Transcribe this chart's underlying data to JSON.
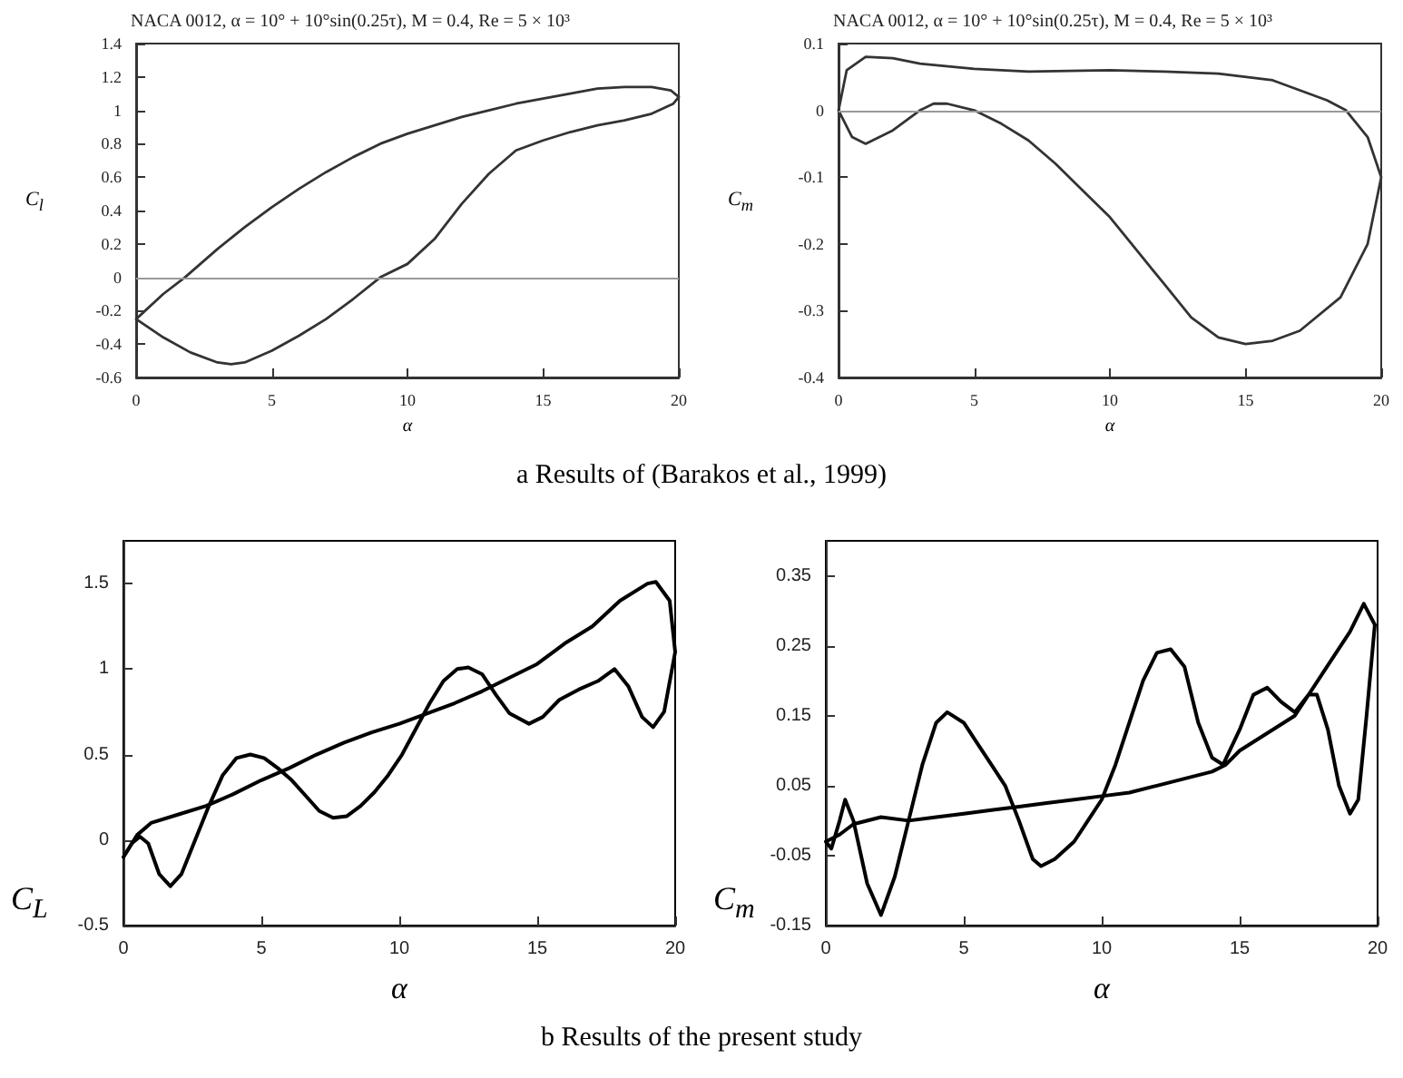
{
  "chart_data": [
    {
      "type": "line",
      "title": "NACA 0012, α = 10° + 10°sin(0.25τ), M = 0.4, Re = 5 × 10³",
      "xlabel": "α",
      "ylabel": "C$_{l}$",
      "xlim": [
        0,
        20
      ],
      "ylim": [
        -0.6,
        1.4
      ],
      "xticks": [
        0,
        5,
        10,
        15,
        20
      ],
      "yticks": [
        -0.6,
        -0.4,
        -0.2,
        0,
        0.2,
        0.4,
        0.6,
        0.8,
        1,
        1.2,
        1.4
      ],
      "grid": false,
      "marker": "none",
      "line_style": "solid",
      "annotations": [
        "a Results of (Barakos et al., 1999)"
      ],
      "ref_lines": [
        {
          "axis": "y",
          "value": 0,
          "color": "#999999"
        }
      ],
      "series": [
        {
          "color": "#333333",
          "x": [
            0,
            1,
            1.8,
            3,
            4,
            5,
            6,
            7,
            8,
            9,
            10,
            11,
            12,
            13,
            14,
            15,
            16,
            17,
            18,
            19,
            19.7,
            20,
            null,
            0,
            1,
            2,
            3,
            3.5,
            4,
            5,
            6,
            7,
            8,
            9,
            10,
            11,
            12,
            13,
            14,
            15,
            16,
            17,
            18,
            19,
            19.8,
            20
          ],
          "values": [
            -0.25,
            -0.1,
            0,
            0.17,
            0.3,
            0.42,
            0.53,
            0.63,
            0.72,
            0.8,
            0.86,
            0.91,
            0.96,
            1.0,
            1.04,
            1.07,
            1.1,
            1.13,
            1.14,
            1.14,
            1.12,
            1.08,
            null,
            -0.25,
            -0.36,
            -0.45,
            -0.51,
            -0.52,
            -0.51,
            -0.44,
            -0.35,
            -0.25,
            -0.13,
            0,
            0.08,
            0.23,
            0.44,
            0.62,
            0.76,
            0.82,
            0.87,
            0.91,
            0.94,
            0.98,
            1.04,
            1.08
          ]
        }
      ]
    },
    {
      "type": "line",
      "title": "NACA 0012, α = 10° + 10°sin(0.25τ), M = 0.4, Re = 5 × 10³",
      "xlabel": "α",
      "ylabel": "C$_{m}$",
      "xlim": [
        0,
        20
      ],
      "ylim": [
        -0.4,
        0.1
      ],
      "xticks": [
        0,
        5,
        10,
        15,
        20
      ],
      "yticks": [
        -0.4,
        -0.3,
        -0.2,
        -0.1,
        0,
        0.1
      ],
      "grid": false,
      "marker": "none",
      "line_style": "solid",
      "ref_lines": [
        {
          "axis": "y",
          "value": 0,
          "color": "#999999"
        }
      ],
      "series": [
        {
          "color": "#333333",
          "x": [
            0,
            0.3,
            1,
            2,
            3,
            5,
            7,
            10,
            12,
            14,
            16,
            17,
            18,
            18.7,
            19.5,
            20,
            null,
            0,
            0.5,
            1,
            2,
            3,
            3.5,
            4,
            5,
            6,
            7,
            8,
            9,
            10,
            11,
            12,
            13,
            14,
            15,
            16,
            17,
            18.5,
            19.5,
            20
          ],
          "values": [
            0,
            0.06,
            0.08,
            0.078,
            0.07,
            0.062,
            0.058,
            0.06,
            0.058,
            0.055,
            0.045,
            0.03,
            0.015,
            0,
            -0.04,
            -0.1,
            null,
            0,
            -0.04,
            -0.05,
            -0.03,
            0,
            0.01,
            0.01,
            0,
            -0.02,
            -0.045,
            -0.08,
            -0.12,
            -0.16,
            -0.21,
            -0.26,
            -0.31,
            -0.34,
            -0.35,
            -0.345,
            -0.33,
            -0.28,
            -0.2,
            -0.1
          ]
        }
      ]
    },
    {
      "type": "line",
      "xlabel": "α",
      "ylabel": "C$_{L}$",
      "xlim": [
        0,
        20
      ],
      "ylim": [
        -0.5,
        1.75
      ],
      "xticks": [
        0,
        5,
        10,
        15,
        20
      ],
      "yticks": [
        -0.5,
        0,
        0.5,
        1,
        1.5
      ],
      "grid": false,
      "marker": "none",
      "line_style": "solid",
      "annotations": [
        "b Results of the present study"
      ],
      "series": [
        {
          "color": "#000000",
          "x": [
            0,
            0.3,
            0.6,
            0.9,
            1.3,
            1.7,
            2.1,
            2.6,
            3.1,
            3.6,
            4.1,
            4.6,
            5.1,
            5.6,
            6.1,
            6.6,
            7.1,
            7.6,
            8.1,
            8.6,
            9.1,
            9.6,
            10.1,
            10.6,
            11.1,
            11.6,
            12.1,
            12.5,
            13,
            13.5,
            14,
            14.7,
            15.2,
            15.8,
            16.5,
            17.2,
            17.8,
            18.3,
            18.8,
            19.2,
            19.6,
            20,
            null,
            0,
            0.5,
            1,
            2,
            3,
            4,
            5,
            6,
            7,
            8,
            9,
            10,
            11,
            12,
            13,
            14,
            15,
            16,
            17,
            18,
            19,
            19.3,
            19.8,
            20
          ],
          "values": [
            -0.1,
            -0.02,
            0.02,
            -0.02,
            -0.2,
            -0.27,
            -0.2,
            0,
            0.2,
            0.38,
            0.48,
            0.5,
            0.48,
            0.42,
            0.35,
            0.26,
            0.17,
            0.13,
            0.14,
            0.2,
            0.28,
            0.38,
            0.5,
            0.65,
            0.8,
            0.93,
            1.0,
            1.01,
            0.97,
            0.85,
            0.74,
            0.68,
            0.72,
            0.82,
            0.88,
            0.93,
            1.0,
            0.9,
            0.72,
            0.66,
            0.75,
            1.1,
            null,
            -0.1,
            0.03,
            0.1,
            0.15,
            0.2,
            0.27,
            0.35,
            0.42,
            0.5,
            0.57,
            0.63,
            0.68,
            0.74,
            0.8,
            0.87,
            0.95,
            1.03,
            1.15,
            1.25,
            1.4,
            1.5,
            1.51,
            1.4,
            1.1
          ]
        }
      ]
    },
    {
      "type": "line",
      "xlabel": "α",
      "ylabel": "C$_{m}$",
      "xlim": [
        0,
        20
      ],
      "ylim": [
        -0.15,
        0.4
      ],
      "xticks": [
        0,
        5,
        10,
        15,
        20
      ],
      "yticks": [
        -0.15,
        -0.05,
        0.05,
        0.15,
        0.25,
        0.35
      ],
      "grid": false,
      "marker": "none",
      "line_style": "solid",
      "series": [
        {
          "color": "#000000",
          "x": [
            0,
            0.5,
            1,
            2,
            3,
            4,
            5,
            6,
            7,
            8,
            9,
            10,
            11,
            12,
            13,
            14,
            14.5,
            15,
            16,
            17,
            18,
            19,
            19.5,
            19.9,
            null,
            0,
            0.2,
            0.5,
            0.7,
            1,
            1.5,
            2,
            2.5,
            3,
            3.5,
            4,
            4.4,
            5,
            5.5,
            6,
            6.5,
            7,
            7.5,
            7.8,
            8.3,
            9,
            9.5,
            10,
            10.5,
            11,
            11.5,
            12,
            12.5,
            13,
            13.5,
            14,
            14.4,
            15,
            15.5,
            16,
            16.5,
            17,
            17.5,
            17.8,
            18.2,
            18.6,
            19,
            19.3,
            19.6,
            19.9
          ],
          "values": [
            -0.03,
            -0.02,
            -0.005,
            0.005,
            0,
            0.005,
            0.01,
            0.015,
            0.02,
            0.025,
            0.03,
            0.035,
            0.04,
            0.05,
            0.06,
            0.07,
            0.08,
            0.1,
            0.125,
            0.15,
            0.21,
            0.27,
            0.31,
            0.28,
            null,
            -0.03,
            -0.04,
            0,
            0.03,
            0,
            -0.09,
            -0.135,
            -0.08,
            0,
            0.08,
            0.14,
            0.155,
            0.14,
            0.11,
            0.08,
            0.05,
            0,
            -0.055,
            -0.065,
            -0.055,
            -0.03,
            0,
            0.03,
            0.08,
            0.14,
            0.2,
            0.24,
            0.245,
            0.22,
            0.14,
            0.09,
            0.08,
            0.13,
            0.18,
            0.19,
            0.17,
            0.155,
            0.18,
            0.18,
            0.13,
            0.05,
            0.01,
            0.03,
            0.15,
            0.28
          ]
        }
      ]
    }
  ]
}
